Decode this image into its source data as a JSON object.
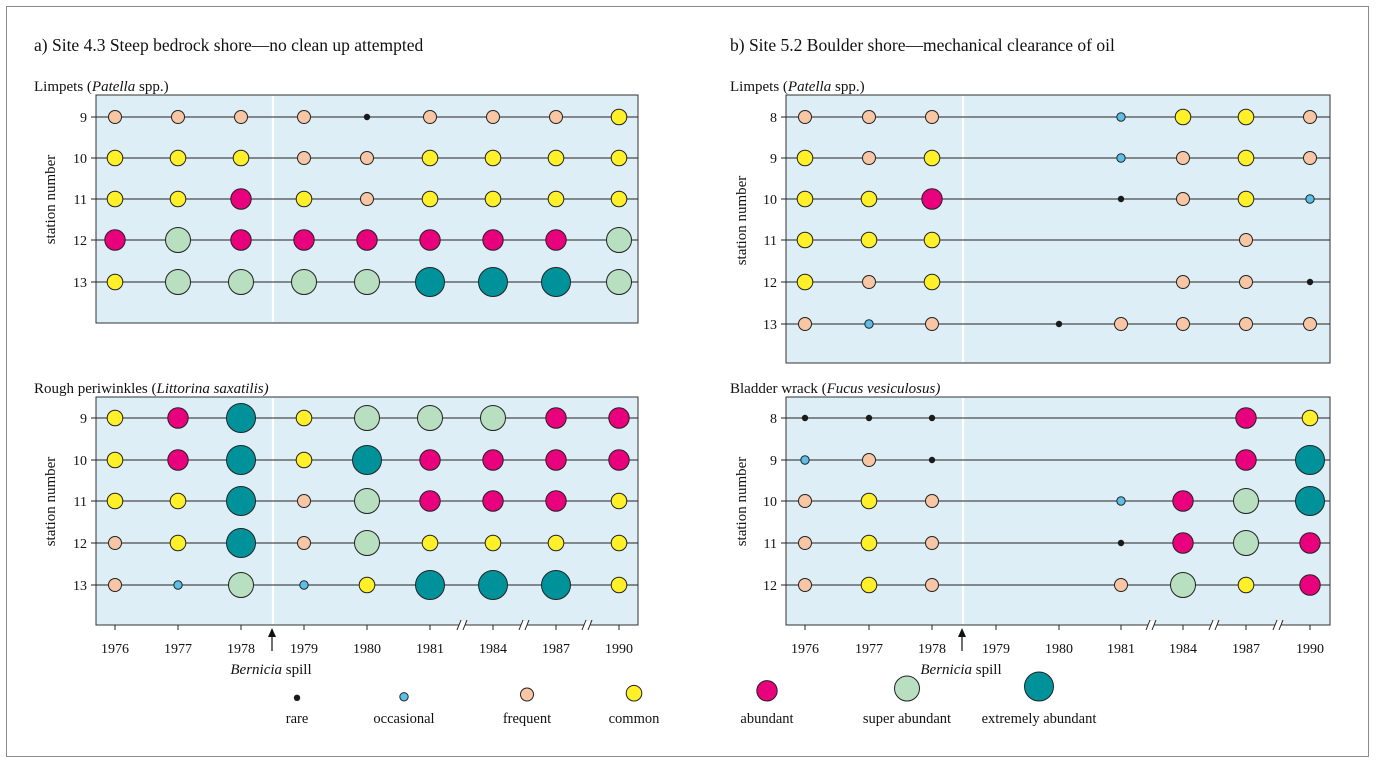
{
  "chart_data": [
    {
      "type": "scatter",
      "panel": "a",
      "title": "a) Site 4.3 Steep bedrock shore—no clean up attempted",
      "subtitle_parts": [
        {
          "t": "Limpets (",
          "i": false
        },
        {
          "t": "Patella",
          "i": true
        },
        {
          "t": " spp.)",
          "i": false
        }
      ],
      "ylabel": "station number",
      "stations": [
        "9",
        "10",
        "11",
        "12",
        "13"
      ],
      "x": [
        "1976",
        "1977",
        "1978",
        "1979",
        "1980",
        "1981",
        "1984",
        "1987",
        "1990"
      ],
      "values": [
        [
          "frequent",
          "frequent",
          "frequent",
          "frequent",
          "rare",
          "frequent",
          "frequent",
          "frequent",
          "common"
        ],
        [
          "common",
          "common",
          "common",
          "frequent",
          "frequent",
          "common",
          "common",
          "common",
          "common"
        ],
        [
          "common",
          "common",
          "abundant",
          "common",
          "frequent",
          "common",
          "common",
          "common",
          "common"
        ],
        [
          "abundant",
          "super abundant",
          "abundant",
          "abundant",
          "abundant",
          "abundant",
          "abundant",
          "abundant",
          "super abundant"
        ],
        [
          "common",
          "super abundant",
          "super abundant",
          "super abundant",
          "super abundant",
          "extremely abundant",
          "extremely abundant",
          "extremely abundant",
          "super abundant"
        ]
      ]
    },
    {
      "type": "scatter",
      "panel": "a",
      "subtitle_parts": [
        {
          "t": "Rough periwinkles (",
          "i": false
        },
        {
          "t": "Littorina saxatilis)",
          "i": true
        }
      ],
      "ylabel": "station number",
      "stations": [
        "9",
        "10",
        "11",
        "12",
        "13"
      ],
      "x": [
        "1976",
        "1977",
        "1978",
        "1979",
        "1980",
        "1981",
        "1984",
        "1987",
        "1990"
      ],
      "values": [
        [
          "common",
          "abundant",
          "extremely abundant",
          "common",
          "super abundant",
          "super abundant",
          "super abundant",
          "abundant",
          "abundant"
        ],
        [
          "common",
          "abundant",
          "extremely abundant",
          "common",
          "extremely abundant",
          "abundant",
          "abundant",
          "abundant",
          "abundant"
        ],
        [
          "common",
          "common",
          "extremely abundant",
          "frequent",
          "super abundant",
          "abundant",
          "abundant",
          "abundant",
          "common"
        ],
        [
          "frequent",
          "common",
          "extremely abundant",
          "frequent",
          "super abundant",
          "common",
          "common",
          "common",
          "common"
        ],
        [
          "frequent",
          "occasional",
          "super abundant",
          "occasional",
          "common",
          "extremely abundant",
          "extremely abundant",
          "extremely abundant",
          "common"
        ]
      ],
      "annotation": {
        "italic": "Bernicia",
        "rest": " spill"
      }
    },
    {
      "type": "scatter",
      "panel": "b",
      "title": "b) Site 5.2 Boulder shore—mechanical clearance of oil",
      "subtitle_parts": [
        {
          "t": "Limpets (",
          "i": false
        },
        {
          "t": "Patella",
          "i": true
        },
        {
          "t": " spp.)",
          "i": false
        }
      ],
      "ylabel": "station number",
      "stations": [
        "8",
        "9",
        "10",
        "11",
        "12",
        "13"
      ],
      "x": [
        "1976",
        "1977",
        "1978",
        "1979",
        "1980",
        "1981",
        "1984",
        "1987",
        "1990"
      ],
      "values": [
        [
          "frequent",
          "frequent",
          "frequent",
          null,
          null,
          "occasional",
          "common",
          "common",
          "frequent"
        ],
        [
          "common",
          "frequent",
          "common",
          null,
          null,
          "occasional",
          "frequent",
          "common",
          "frequent"
        ],
        [
          "common",
          "common",
          "abundant",
          null,
          null,
          "rare",
          "frequent",
          "common",
          "occasional"
        ],
        [
          "common",
          "common",
          "common",
          null,
          null,
          null,
          null,
          "frequent",
          null
        ],
        [
          "common",
          "frequent",
          "common",
          null,
          null,
          null,
          "frequent",
          "frequent",
          "rare"
        ],
        [
          "frequent",
          "occasional",
          "frequent",
          null,
          "rare",
          "frequent",
          "frequent",
          "frequent",
          "frequent"
        ]
      ]
    },
    {
      "type": "scatter",
      "panel": "b",
      "subtitle_parts": [
        {
          "t": "Bladder wrack (",
          "i": false
        },
        {
          "t": "Fucus vesiculosus)",
          "i": true
        }
      ],
      "ylabel": "station number",
      "stations": [
        "8",
        "9",
        "10",
        "11",
        "12"
      ],
      "x": [
        "1976",
        "1977",
        "1978",
        "1979",
        "1980",
        "1981",
        "1984",
        "1987",
        "1990"
      ],
      "values": [
        [
          "rare",
          "rare",
          "rare",
          null,
          null,
          null,
          null,
          "abundant",
          "common"
        ],
        [
          "occasional",
          "frequent",
          "rare",
          null,
          null,
          null,
          null,
          "abundant",
          "extremely abundant"
        ],
        [
          "frequent",
          "common",
          "frequent",
          null,
          null,
          "occasional",
          "abundant",
          "super abundant",
          "extremely abundant"
        ],
        [
          "frequent",
          "common",
          "frequent",
          null,
          null,
          "rare",
          "abundant",
          "super abundant",
          "abundant"
        ],
        [
          "frequent",
          "common",
          "frequent",
          null,
          null,
          "frequent",
          "super abundant",
          "common",
          "abundant"
        ]
      ],
      "annotation": {
        "italic": "Bernicia",
        "rest": " spill"
      }
    }
  ],
  "legend": [
    {
      "label": "rare",
      "color": "#1a1a1a"
    },
    {
      "label": "occasional",
      "color": "#5bc0e8"
    },
    {
      "label": "frequent",
      "color": "#f8c6a4"
    },
    {
      "label": "common",
      "color": "#fff02a"
    },
    {
      "label": "abundant",
      "color": "#e8007d"
    },
    {
      "label": "super abundant",
      "color": "#b7dfc0"
    },
    {
      "label": "extremely abundant",
      "color": "#00929b"
    }
  ],
  "colors": {
    "panel_bg": "#ddeef7",
    "spill_line": "#ffffff",
    "marker_stroke": "#222222"
  }
}
